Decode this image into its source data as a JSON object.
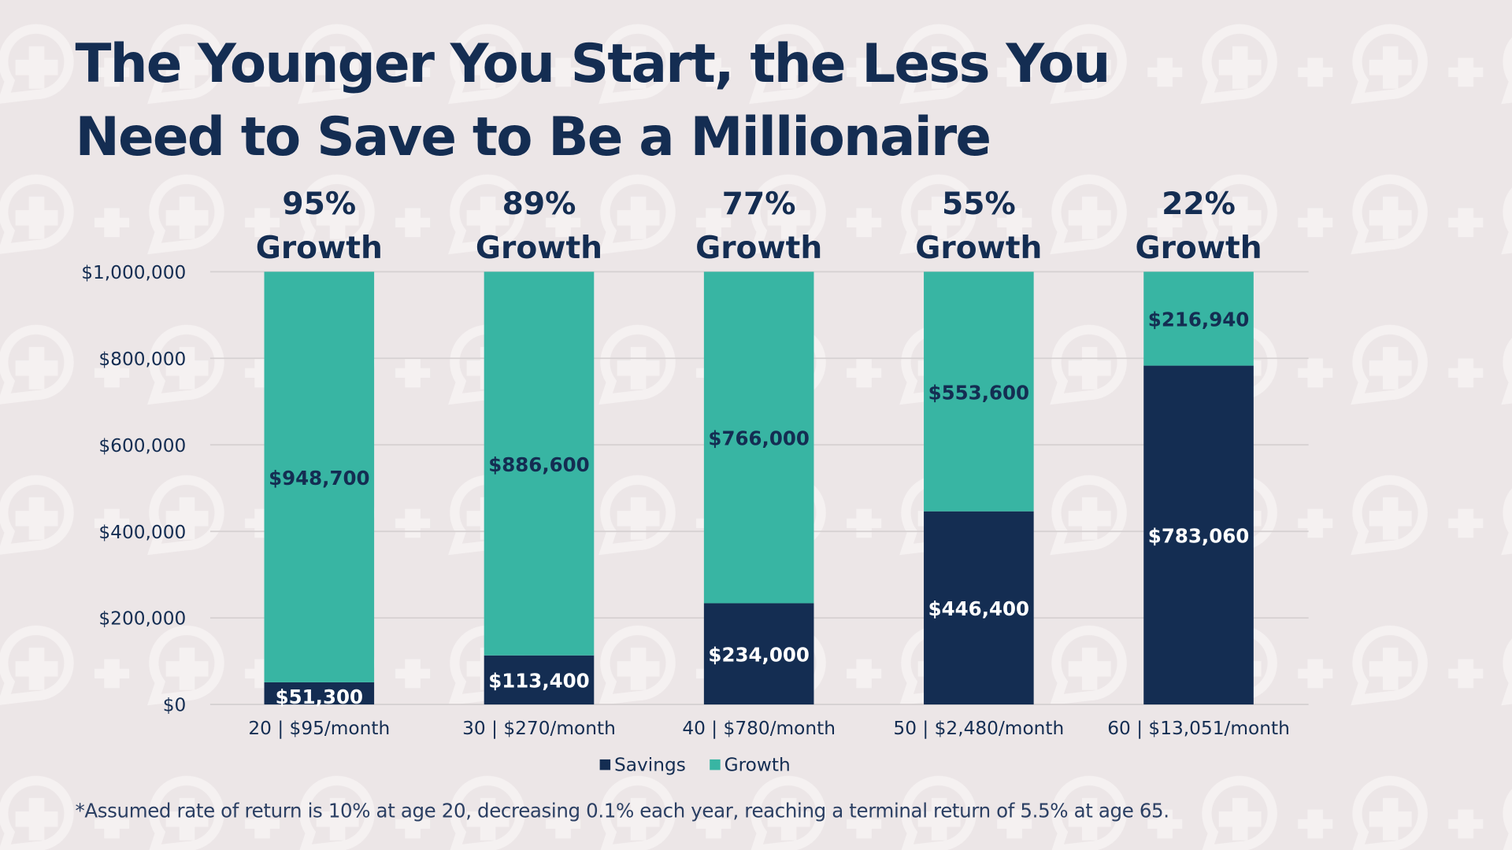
{
  "title_line1": "The Younger You Start, the Less You",
  "title_line2": "Need to Save to Be a Millionaire",
  "footnote": "*Assumed rate of return is 10% at age 20, decreasing 0.1% each year, reaching a terminal return of 5.5% at age 65.",
  "colors": {
    "background": "#ece6e7",
    "savings": "#142d52",
    "growth": "#38b5a3",
    "text": "#142d52"
  },
  "background_icon": "speech-bubble-plus-icon",
  "chart_data": {
    "type": "bar",
    "stacked": true,
    "categories": [
      "20 | $95/month",
      "30 | $270/month",
      "40 | $780/month",
      "50 | $2,480/month",
      "60 | $13,051/month"
    ],
    "series": [
      {
        "name": "Savings",
        "values": [
          51300,
          113400,
          234000,
          446400,
          783060
        ],
        "labels": [
          "$51,300",
          "$113,400",
          "$234,000",
          "$446,400",
          "$783,060"
        ]
      },
      {
        "name": "Growth",
        "values": [
          948700,
          886600,
          766000,
          553600,
          216940
        ],
        "labels": [
          "$948,700",
          "$886,600",
          "$766,000",
          "$553,600",
          "$216,940"
        ]
      }
    ],
    "growth_headers": [
      {
        "pct": "95%",
        "word": "Growth"
      },
      {
        "pct": "89%",
        "word": "Growth"
      },
      {
        "pct": "77%",
        "word": "Growth"
      },
      {
        "pct": "55%",
        "word": "Growth"
      },
      {
        "pct": "22%",
        "word": "Growth"
      }
    ],
    "ylim": [
      0,
      1000000
    ],
    "yticks": [
      0,
      200000,
      400000,
      600000,
      800000,
      1000000
    ],
    "ytick_labels": [
      "$0",
      "$200,000",
      "$400,000",
      "$600,000",
      "$800,000",
      "$1,000,000"
    ],
    "grid": true,
    "legend": "bottom",
    "xlabel": "",
    "ylabel": ""
  }
}
